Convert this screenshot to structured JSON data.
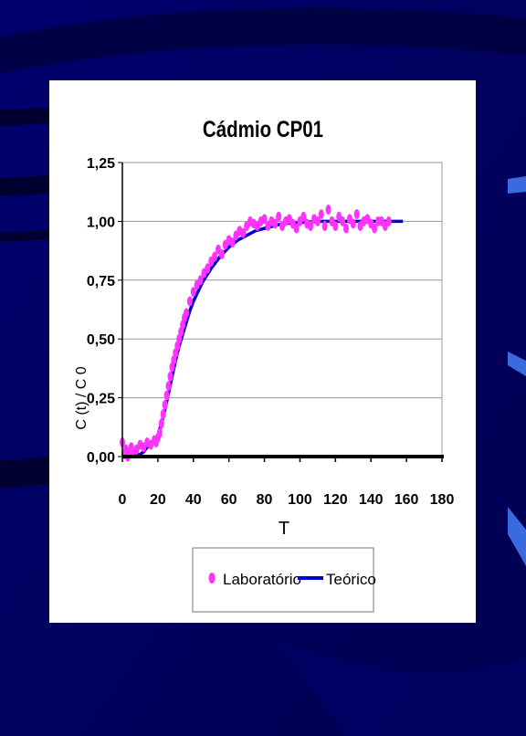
{
  "slide": {
    "background_color": "#00005a",
    "panel_color": "#ffffff"
  },
  "chart_data": {
    "type": "scatter",
    "title": "Cádmio CP01",
    "xlabel": "T",
    "ylabel": "C (t) / C 0",
    "xlim": [
      0,
      180
    ],
    "ylim": [
      0,
      1.25
    ],
    "x_ticks": [
      0,
      20,
      40,
      60,
      80,
      100,
      120,
      140,
      160,
      180
    ],
    "y_ticks": [
      0,
      0.25,
      0.5,
      0.75,
      1.0,
      1.25
    ],
    "x_tick_labels": [
      "0",
      "20",
      "40",
      "60",
      "80",
      "100",
      "120",
      "140",
      "160",
      "180"
    ],
    "y_tick_labels": [
      "0,00",
      "0,25",
      "0,50",
      "0,75",
      "1,00",
      "1,25"
    ],
    "grid": "horizontal",
    "legend_position": "bottom",
    "series": [
      {
        "name": "Laboratório",
        "style": "markers",
        "color": "#ff33ff",
        "x": [
          0,
          1,
          2,
          3,
          4,
          5,
          6,
          8,
          10,
          12,
          14,
          16,
          18,
          19,
          20,
          21,
          22,
          23,
          24,
          25,
          26,
          27,
          28,
          29,
          30,
          31,
          32,
          33,
          34,
          35,
          36,
          38,
          40,
          42,
          44,
          46,
          48,
          50,
          52,
          54,
          56,
          58,
          60,
          62,
          64,
          66,
          68,
          70,
          72,
          74,
          76,
          78,
          80,
          82,
          84,
          86,
          88,
          90,
          92,
          94,
          96,
          98,
          100,
          102,
          104,
          106,
          108,
          110,
          112,
          114,
          116,
          118,
          120,
          122,
          124,
          126,
          128,
          130,
          132,
          134,
          136,
          138,
          140,
          142,
          144,
          146,
          148,
          150
        ],
        "y": [
          0.06,
          0.01,
          0.03,
          0.0,
          0.02,
          0.04,
          0.02,
          0.03,
          0.05,
          0.04,
          0.06,
          0.05,
          0.07,
          0.06,
          0.08,
          0.1,
          0.14,
          0.18,
          0.22,
          0.26,
          0.3,
          0.34,
          0.38,
          0.41,
          0.44,
          0.47,
          0.5,
          0.53,
          0.56,
          0.59,
          0.61,
          0.66,
          0.7,
          0.73,
          0.75,
          0.78,
          0.8,
          0.83,
          0.85,
          0.88,
          0.86,
          0.9,
          0.92,
          0.91,
          0.94,
          0.96,
          0.95,
          0.98,
          1.0,
          0.99,
          0.98,
          1.0,
          1.01,
          0.98,
          1.0,
          0.99,
          1.02,
          0.98,
          1.0,
          1.01,
          0.99,
          0.97,
          1.0,
          1.02,
          0.99,
          0.98,
          1.01,
          1.0,
          1.03,
          0.98,
          1.05,
          1.0,
          0.98,
          1.02,
          1.0,
          0.97,
          1.01,
          0.99,
          1.03,
          0.98,
          1.0,
          1.01,
          0.99,
          0.97,
          1.0,
          1.0,
          0.98,
          1.0
        ]
      },
      {
        "name": "Teórico",
        "style": "line",
        "color": "#0000cc",
        "x": [
          0,
          5,
          10,
          12,
          14,
          16,
          18,
          20,
          22,
          24,
          26,
          28,
          30,
          32,
          34,
          36,
          38,
          40,
          45,
          50,
          55,
          60,
          65,
          70,
          75,
          80,
          85,
          90,
          100,
          110,
          120,
          130,
          140,
          150,
          158
        ],
        "y": [
          0,
          0.0,
          0.01,
          0.02,
          0.04,
          0.06,
          0.07,
          0.09,
          0.14,
          0.2,
          0.27,
          0.34,
          0.41,
          0.47,
          0.52,
          0.57,
          0.62,
          0.66,
          0.74,
          0.8,
          0.85,
          0.89,
          0.92,
          0.94,
          0.96,
          0.97,
          0.98,
          0.99,
          0.995,
          1.0,
          1.0,
          1.0,
          1.0,
          1.0,
          1.0
        ]
      }
    ]
  }
}
